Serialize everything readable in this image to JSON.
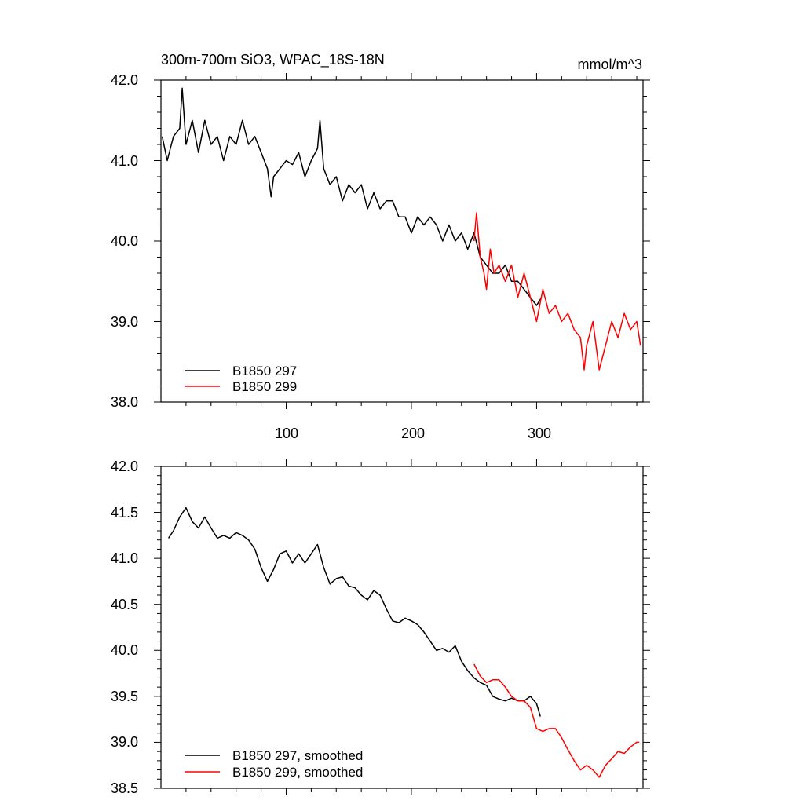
{
  "top_panel": {
    "title_left": "300m-700m SiO3, WPAC_18S-18N",
    "title_right": "mmol/m^3",
    "y_tick_labels": [
      "42.0",
      "41.0",
      "40.0",
      "39.0",
      "38.0"
    ],
    "x_tick_labels": [
      "100",
      "200",
      "300"
    ],
    "legend": [
      "B1850 297",
      "B1850 299"
    ]
  },
  "bottom_panel": {
    "y_tick_labels": [
      "42.0",
      "41.5",
      "41.0",
      "40.5",
      "40.0",
      "39.5",
      "39.0",
      "38.5"
    ],
    "legend": [
      "B1850 297, smoothed",
      "B1850 299, smoothed"
    ]
  },
  "colors": {
    "series_297": "#000000",
    "series_299": "#ff0000"
  },
  "chart_data": [
    {
      "type": "line",
      "title": "300m-700m SiO3, WPAC_18S-18N",
      "units": "mmol/m^3",
      "xlim": [
        0,
        385
      ],
      "ylim": [
        38.0,
        42.0
      ],
      "x_ticks": [
        100,
        200,
        300
      ],
      "y_ticks": [
        38.0,
        39.0,
        40.0,
        41.0,
        42.0
      ],
      "legend_position": "bottom-left",
      "series": [
        {
          "name": "B1850 297",
          "color": "#000000",
          "x": [
            1,
            5,
            10,
            15,
            17,
            20,
            25,
            30,
            35,
            40,
            45,
            50,
            55,
            60,
            65,
            70,
            75,
            80,
            85,
            88,
            90,
            95,
            100,
            105,
            110,
            115,
            120,
            125,
            127,
            130,
            135,
            140,
            145,
            150,
            155,
            160,
            165,
            170,
            175,
            180,
            185,
            190,
            195,
            200,
            205,
            210,
            215,
            220,
            225,
            230,
            235,
            240,
            245,
            250,
            255,
            260,
            265,
            270,
            275,
            280,
            285,
            290,
            295,
            300,
            304
          ],
          "y": [
            41.3,
            41.0,
            41.3,
            41.4,
            41.9,
            41.2,
            41.5,
            41.1,
            41.5,
            41.2,
            41.3,
            41.0,
            41.3,
            41.2,
            41.5,
            41.2,
            41.3,
            41.1,
            40.9,
            40.55,
            40.8,
            40.9,
            41.0,
            40.95,
            41.1,
            40.8,
            41.0,
            41.15,
            41.5,
            40.9,
            40.7,
            40.8,
            40.5,
            40.7,
            40.6,
            40.7,
            40.4,
            40.6,
            40.4,
            40.5,
            40.5,
            40.3,
            40.3,
            40.1,
            40.3,
            40.2,
            40.3,
            40.2,
            40.0,
            40.2,
            40.0,
            40.1,
            39.9,
            40.1,
            39.8,
            39.7,
            39.6,
            39.6,
            39.7,
            39.5,
            39.5,
            39.4,
            39.3,
            39.2,
            39.3
          ]
        },
        {
          "name": "B1850 299",
          "color": "#ff0000",
          "x": [
            250,
            252,
            255,
            258,
            260,
            263,
            266,
            270,
            275,
            280,
            285,
            290,
            295,
            300,
            305,
            310,
            315,
            320,
            325,
            330,
            335,
            338,
            340,
            345,
            350,
            355,
            360,
            365,
            370,
            375,
            380,
            383
          ],
          "y": [
            40.0,
            40.35,
            39.8,
            39.6,
            39.4,
            39.9,
            39.6,
            39.7,
            39.5,
            39.7,
            39.3,
            39.6,
            39.3,
            39.0,
            39.4,
            39.1,
            39.2,
            39.0,
            39.1,
            38.9,
            38.8,
            38.4,
            38.7,
            39.0,
            38.4,
            38.7,
            39.0,
            38.8,
            39.1,
            38.9,
            39.0,
            38.7
          ]
        }
      ]
    },
    {
      "type": "line",
      "xlim": [
        0,
        385
      ],
      "ylim": [
        38.5,
        42.0
      ],
      "y_ticks": [
        38.5,
        39.0,
        39.5,
        40.0,
        40.5,
        41.0,
        41.5,
        42.0
      ],
      "legend_position": "bottom-left",
      "series": [
        {
          "name": "B1850 297, smoothed",
          "color": "#000000",
          "x": [
            6,
            10,
            15,
            20,
            25,
            30,
            35,
            40,
            45,
            50,
            55,
            60,
            65,
            70,
            75,
            80,
            85,
            90,
            95,
            100,
            105,
            110,
            115,
            120,
            125,
            130,
            135,
            140,
            145,
            150,
            155,
            160,
            165,
            170,
            175,
            180,
            185,
            190,
            195,
            200,
            205,
            210,
            215,
            220,
            225,
            230,
            235,
            240,
            245,
            250,
            255,
            260,
            265,
            270,
            275,
            280,
            285,
            290,
            295,
            300,
            303
          ],
          "y": [
            41.22,
            41.3,
            41.45,
            41.55,
            41.4,
            41.33,
            41.45,
            41.33,
            41.22,
            41.25,
            41.22,
            41.28,
            41.25,
            41.2,
            41.1,
            40.9,
            40.75,
            40.88,
            41.05,
            41.08,
            40.95,
            41.05,
            40.95,
            41.05,
            41.15,
            40.9,
            40.72,
            40.78,
            40.8,
            40.7,
            40.68,
            40.6,
            40.55,
            40.65,
            40.6,
            40.45,
            40.32,
            40.3,
            40.35,
            40.32,
            40.28,
            40.2,
            40.1,
            40.0,
            40.02,
            39.98,
            40.05,
            39.88,
            39.78,
            39.7,
            39.65,
            39.62,
            39.5,
            39.47,
            39.45,
            39.48,
            39.45,
            39.45,
            39.5,
            39.42,
            39.28
          ]
        },
        {
          "name": "B1850 299, smoothed",
          "color": "#ff0000",
          "x": [
            250,
            255,
            260,
            265,
            270,
            275,
            280,
            285,
            290,
            295,
            300,
            305,
            310,
            315,
            320,
            325,
            330,
            335,
            340,
            345,
            350,
            355,
            360,
            365,
            370,
            375,
            380,
            382
          ],
          "y": [
            39.85,
            39.72,
            39.65,
            39.68,
            39.68,
            39.6,
            39.5,
            39.45,
            39.45,
            39.38,
            39.15,
            39.12,
            39.15,
            39.15,
            39.05,
            38.92,
            38.8,
            38.7,
            38.75,
            38.7,
            38.62,
            38.75,
            38.82,
            38.9,
            38.88,
            38.95,
            39.0,
            39.0
          ]
        }
      ]
    }
  ]
}
